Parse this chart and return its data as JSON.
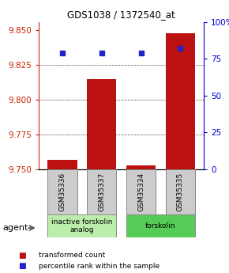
{
  "title": "GDS1038 / 1372540_at",
  "samples": [
    "GSM35336",
    "GSM35337",
    "GSM35334",
    "GSM35335"
  ],
  "bar_values": [
    9.757,
    9.815,
    9.753,
    9.848
  ],
  "percentile_values": [
    79,
    79,
    79,
    82
  ],
  "ylim_left": [
    9.75,
    9.856
  ],
  "ylim_right": [
    0,
    100
  ],
  "yticks_left": [
    9.75,
    9.775,
    9.8,
    9.825,
    9.85
  ],
  "yticks_right": [
    0,
    25,
    50,
    75,
    100
  ],
  "bar_color": "#bb1111",
  "dot_color": "#2222cc",
  "bar_width": 0.75,
  "groups": [
    {
      "label": "inactive forskolin\nanalog",
      "indices": [
        0,
        1
      ],
      "color": "#bbeeaa"
    },
    {
      "label": "forskolin",
      "indices": [
        2,
        3
      ],
      "color": "#55cc55"
    }
  ],
  "legend_items": [
    {
      "label": "transformed count",
      "color": "#bb1111"
    },
    {
      "label": "percentile rank within the sample",
      "color": "#2222cc"
    }
  ],
  "agent_label": "agent",
  "background_color": "#ffffff",
  "plot_bg_color": "#ffffff",
  "gsm_box_color": "#cccccc",
  "gsm_box_edge": "#888888"
}
